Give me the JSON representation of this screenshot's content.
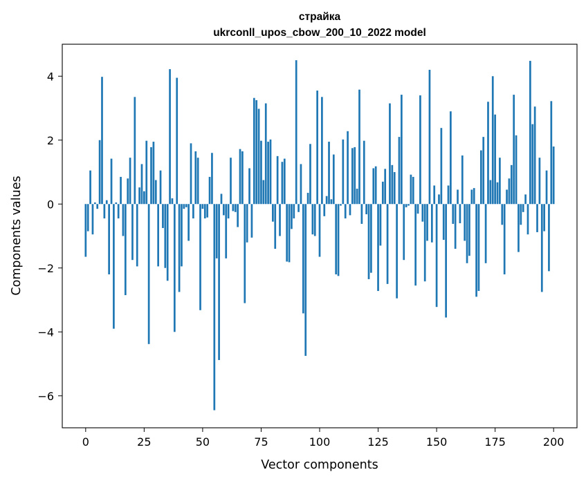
{
  "chart_data": {
    "type": "bar",
    "title_lines": [
      "страйка",
      "ukrconll_upos_cbow_200_10_2022 model"
    ],
    "xlabel": "Vector components",
    "ylabel": "Components values",
    "xlim": [
      -10,
      210
    ],
    "ylim": [
      -7,
      5
    ],
    "xticks": [
      0,
      25,
      50,
      75,
      100,
      125,
      150,
      175,
      200
    ],
    "yticks": [
      -6,
      -4,
      -2,
      0,
      2,
      4
    ],
    "ytick_labels": [
      "−6",
      "−4",
      "−2",
      "0",
      "2",
      "4"
    ],
    "bar_color": "#1f77b4",
    "grid": false,
    "values": [
      -1.65,
      -0.85,
      1.05,
      -0.95,
      0.05,
      -0.15,
      2.0,
      3.98,
      -0.45,
      0.12,
      -2.2,
      1.42,
      -3.9,
      0.05,
      -0.45,
      0.85,
      -1.0,
      -2.85,
      0.8,
      1.45,
      -1.75,
      3.35,
      -1.95,
      0.52,
      1.25,
      0.4,
      1.98,
      -4.38,
      1.78,
      1.95,
      0.75,
      -1.95,
      1.05,
      -0.75,
      -2.0,
      -2.4,
      4.22,
      0.18,
      -4.0,
      3.95,
      -2.75,
      -1.95,
      -0.15,
      -0.1,
      -1.15,
      1.9,
      -0.45,
      1.65,
      1.45,
      -3.32,
      -0.15,
      -0.45,
      -0.42,
      0.85,
      1.6,
      -6.45,
      -1.7,
      -4.88,
      0.32,
      -0.35,
      -1.7,
      -0.45,
      1.45,
      -0.22,
      -0.25,
      -0.72,
      1.72,
      1.65,
      -3.1,
      -1.2,
      1.12,
      -1.05,
      3.32,
      3.25,
      2.98,
      1.98,
      0.75,
      3.15,
      1.95,
      2.02,
      -0.55,
      -1.4,
      1.5,
      -1.0,
      1.32,
      1.42,
      -1.8,
      -1.82,
      -0.78,
      -0.45,
      4.5,
      -0.25,
      1.25,
      -3.42,
      -4.75,
      0.35,
      1.88,
      -0.95,
      -1.0,
      3.55,
      -1.65,
      3.35,
      -0.38,
      0.25,
      1.95,
      0.15,
      1.55,
      -2.2,
      -2.25,
      -0.05,
      2.02,
      -0.45,
      2.28,
      -0.35,
      1.75,
      1.78,
      0.48,
      3.58,
      -0.62,
      1.98,
      -0.32,
      -2.35,
      -2.15,
      1.12,
      1.18,
      -2.72,
      -1.3,
      0.7,
      1.1,
      -2.5,
      3.15,
      1.22,
      1.0,
      -2.95,
      2.1,
      3.42,
      -1.75,
      -0.1,
      -0.05,
      0.92,
      0.85,
      -2.55,
      -0.3,
      3.4,
      -0.55,
      -2.42,
      -1.15,
      4.2,
      -1.2,
      0.58,
      -3.22,
      0.3,
      2.38,
      -1.12,
      -3.55,
      0.58,
      2.9,
      -0.62,
      -1.4,
      0.45,
      -0.6,
      1.52,
      -1.15,
      -1.85,
      -1.62,
      0.45,
      0.5,
      -2.9,
      -2.72,
      1.68,
      2.1,
      -1.85,
      3.2,
      0.75,
      4.0,
      2.8,
      0.68,
      1.45,
      -0.65,
      -2.2,
      0.45,
      0.8,
      1.22,
      3.42,
      2.15,
      -1.5,
      -0.65,
      -0.25,
      0.3,
      -0.95,
      4.48,
      2.5,
      3.05,
      -0.88,
      1.45,
      -2.75,
      -0.85,
      1.05,
      -2.1,
      3.22,
      1.8
    ]
  }
}
